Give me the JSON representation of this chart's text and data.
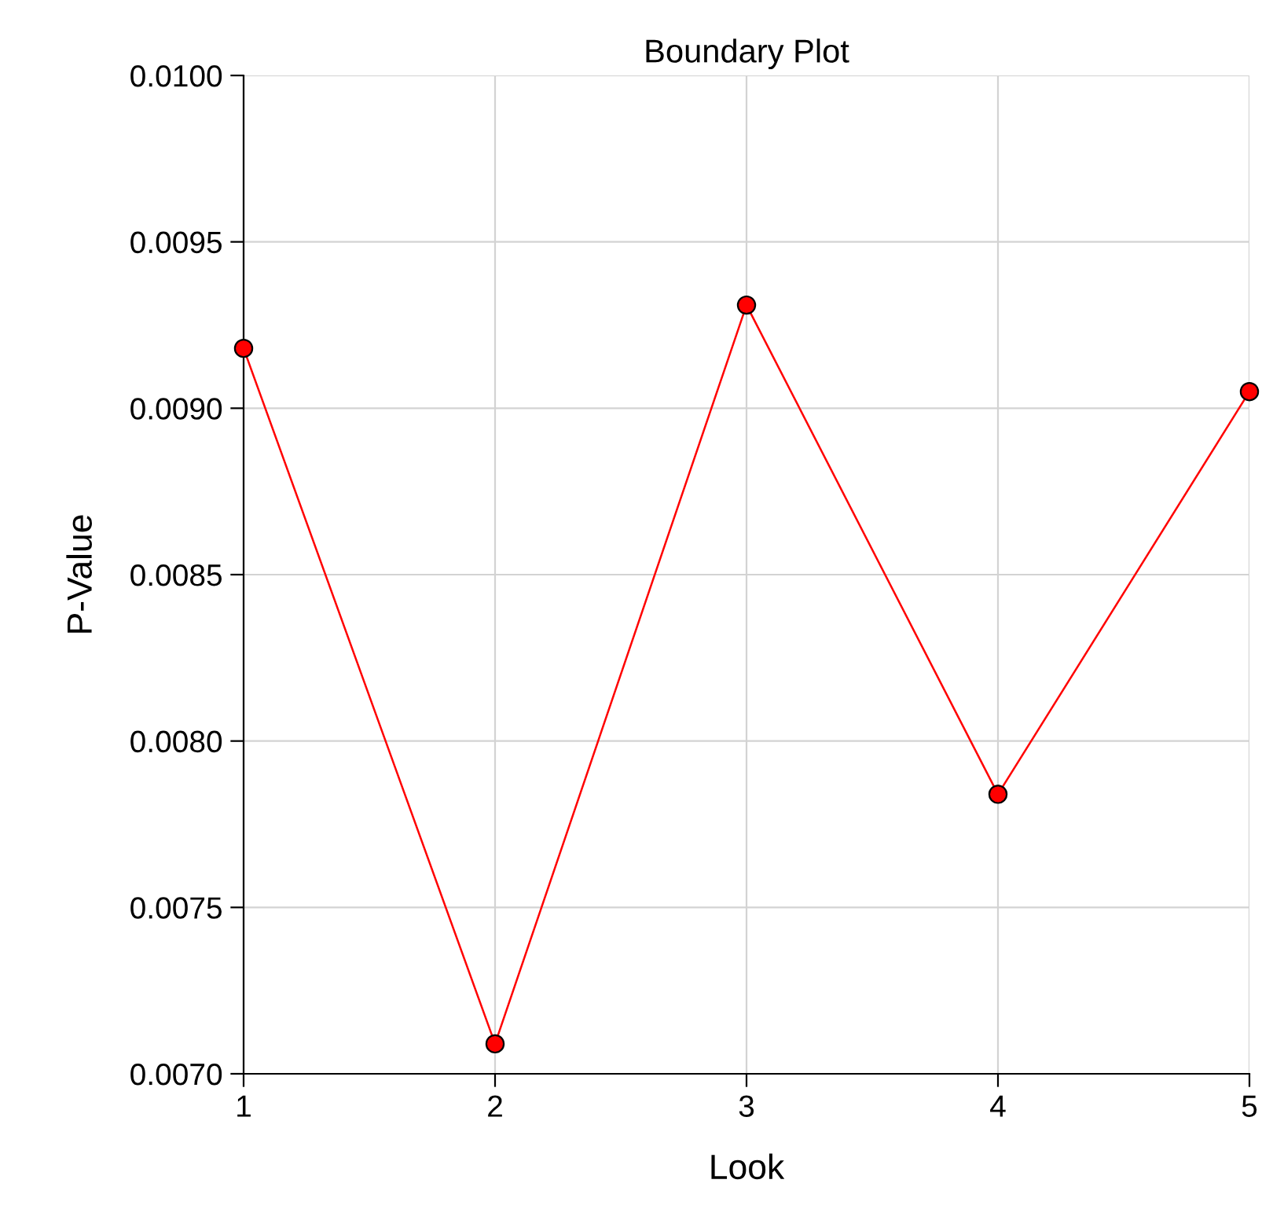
{
  "chart_data": {
    "type": "line",
    "title": "Boundary Plot",
    "xlabel": "Look",
    "ylabel": "P-Value",
    "x": [
      1,
      2,
      3,
      4,
      5
    ],
    "series": [
      {
        "color": "#ff0000",
        "values": [
          0.00918,
          0.00709,
          0.00931,
          0.00784,
          0.00905
        ]
      }
    ],
    "xlim": [
      1,
      5
    ],
    "xticks": [
      1,
      2,
      3,
      4,
      5
    ],
    "ylim": [
      0.007,
      0.01
    ],
    "yticks": [
      {
        "value": 0.007,
        "label": "0.0070"
      },
      {
        "value": 0.0075,
        "label": "0.0075"
      },
      {
        "value": 0.008,
        "label": "0.0080"
      },
      {
        "value": 0.0085,
        "label": "0.0085"
      },
      {
        "value": 0.009,
        "label": "0.0090"
      },
      {
        "value": 0.0095,
        "label": "0.0095"
      },
      {
        "value": 0.01,
        "label": "0.0100"
      }
    ],
    "grid": true,
    "marker": "circle",
    "line_style": "solid"
  }
}
